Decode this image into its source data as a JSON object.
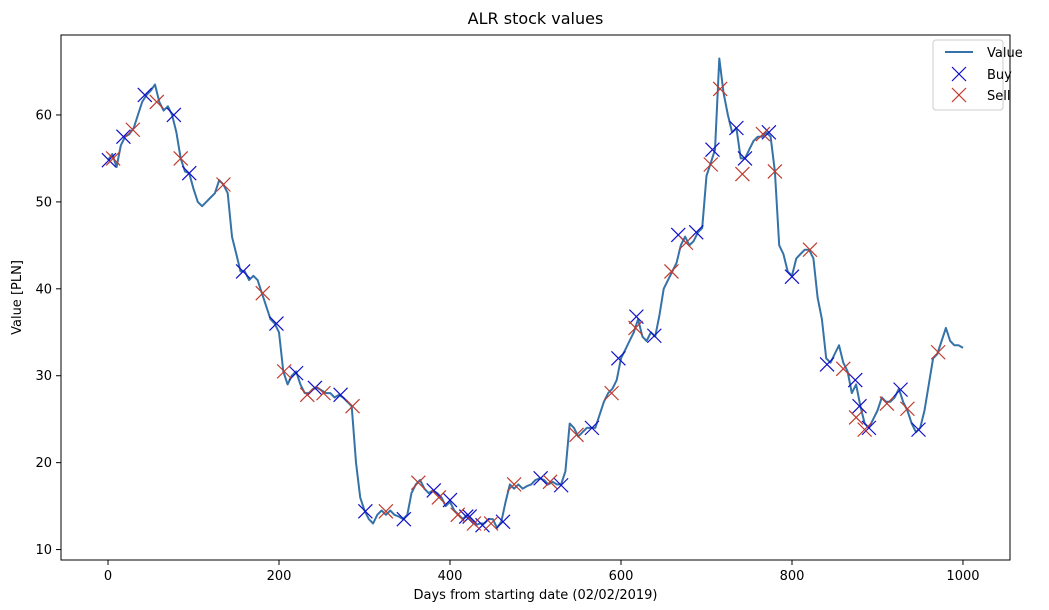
{
  "chart_data": {
    "type": "line",
    "title": "ALR stock values",
    "xlabel": "Days from starting date (02/02/2019)",
    "ylabel": "Value [PLN]",
    "xlim": [
      -55,
      1055
    ],
    "ylim": [
      8.8,
      69.2
    ],
    "xticks": [
      0,
      200,
      400,
      600,
      800,
      1000
    ],
    "yticks": [
      10,
      20,
      30,
      40,
      50,
      60
    ],
    "grid": false,
    "legend_position": "top-right",
    "colors": {
      "value": "#3572a8",
      "buy": "#1010c8",
      "sell": "#c0392b"
    },
    "series": [
      {
        "name": "Value",
        "kind": "line",
        "points": [
          [
            0,
            54.8
          ],
          [
            5,
            55.5
          ],
          [
            10,
            54.0
          ],
          [
            15,
            56.5
          ],
          [
            20,
            57.5
          ],
          [
            25,
            57.8
          ],
          [
            30,
            58.5
          ],
          [
            35,
            60.0
          ],
          [
            40,
            61.5
          ],
          [
            45,
            62.3
          ],
          [
            50,
            62.8
          ],
          [
            55,
            63.5
          ],
          [
            60,
            61.5
          ],
          [
            65,
            60.5
          ],
          [
            70,
            61.0
          ],
          [
            75,
            60.0
          ],
          [
            80,
            58.0
          ],
          [
            85,
            55.0
          ],
          [
            90,
            53.5
          ],
          [
            95,
            53.3
          ],
          [
            100,
            51.5
          ],
          [
            105,
            50.0
          ],
          [
            110,
            49.5
          ],
          [
            115,
            50.0
          ],
          [
            120,
            50.5
          ],
          [
            125,
            51.0
          ],
          [
            130,
            52.5
          ],
          [
            135,
            52.0
          ],
          [
            140,
            51.0
          ],
          [
            145,
            46.0
          ],
          [
            150,
            44.0
          ],
          [
            155,
            42.0
          ],
          [
            160,
            42.0
          ],
          [
            165,
            41.0
          ],
          [
            170,
            41.5
          ],
          [
            175,
            41.0
          ],
          [
            180,
            39.5
          ],
          [
            185,
            38.0
          ],
          [
            190,
            36.5
          ],
          [
            195,
            36.0
          ],
          [
            200,
            35.0
          ],
          [
            205,
            30.5
          ],
          [
            210,
            29.0
          ],
          [
            215,
            30.0
          ],
          [
            220,
            30.5
          ],
          [
            225,
            29.0
          ],
          [
            230,
            28.0
          ],
          [
            235,
            28.0
          ],
          [
            240,
            28.5
          ],
          [
            245,
            28.6
          ],
          [
            250,
            28.3
          ],
          [
            255,
            28.0
          ],
          [
            260,
            28.0
          ],
          [
            265,
            27.5
          ],
          [
            270,
            27.8
          ],
          [
            275,
            27.5
          ],
          [
            280,
            27.0
          ],
          [
            285,
            26.5
          ],
          [
            290,
            20.0
          ],
          [
            295,
            16.0
          ],
          [
            300,
            14.5
          ],
          [
            305,
            13.5
          ],
          [
            310,
            13.0
          ],
          [
            315,
            14.0
          ],
          [
            320,
            14.5
          ],
          [
            325,
            14.0
          ],
          [
            330,
            14.5
          ],
          [
            335,
            14.0
          ],
          [
            340,
            13.8
          ],
          [
            345,
            13.5
          ],
          [
            350,
            14.0
          ],
          [
            355,
            16.5
          ],
          [
            360,
            17.5
          ],
          [
            365,
            18.0
          ],
          [
            370,
            17.0
          ],
          [
            375,
            16.5
          ],
          [
            380,
            16.8
          ],
          [
            385,
            16.5
          ],
          [
            390,
            16.0
          ],
          [
            395,
            15.0
          ],
          [
            400,
            15.5
          ],
          [
            405,
            14.5
          ],
          [
            410,
            14.0
          ],
          [
            415,
            13.5
          ],
          [
            420,
            14.0
          ],
          [
            425,
            13.5
          ],
          [
            430,
            12.8
          ],
          [
            435,
            13.0
          ],
          [
            440,
            13.0
          ],
          [
            445,
            13.5
          ],
          [
            450,
            13.5
          ],
          [
            455,
            12.5
          ],
          [
            460,
            13.2
          ],
          [
            465,
            15.5
          ],
          [
            470,
            17.5
          ],
          [
            475,
            17.0
          ],
          [
            480,
            17.5
          ],
          [
            485,
            17.0
          ],
          [
            490,
            17.3
          ],
          [
            495,
            17.5
          ],
          [
            500,
            18.0
          ],
          [
            505,
            18.2
          ],
          [
            510,
            18.0
          ],
          [
            515,
            17.5
          ],
          [
            520,
            17.8
          ],
          [
            525,
            17.5
          ],
          [
            530,
            17.5
          ],
          [
            535,
            19.0
          ],
          [
            540,
            24.5
          ],
          [
            545,
            24.0
          ],
          [
            550,
            23.0
          ],
          [
            555,
            23.5
          ],
          [
            560,
            24.0
          ],
          [
            565,
            24.0
          ],
          [
            570,
            24.0
          ],
          [
            575,
            25.5
          ],
          [
            580,
            27.0
          ],
          [
            585,
            28.0
          ],
          [
            590,
            28.5
          ],
          [
            595,
            29.5
          ],
          [
            600,
            32.0
          ],
          [
            605,
            33.0
          ],
          [
            610,
            34.0
          ],
          [
            615,
            35.0
          ],
          [
            620,
            36.5
          ],
          [
            625,
            34.5
          ],
          [
            630,
            34.0
          ],
          [
            635,
            35.0
          ],
          [
            640,
            34.5
          ],
          [
            645,
            37.0
          ],
          [
            650,
            40.0
          ],
          [
            655,
            41.0
          ],
          [
            660,
            42.0
          ],
          [
            665,
            43.0
          ],
          [
            670,
            45.0
          ],
          [
            675,
            46.0
          ],
          [
            680,
            45.0
          ],
          [
            685,
            45.5
          ],
          [
            690,
            46.5
          ],
          [
            695,
            47.0
          ],
          [
            700,
            53.0
          ],
          [
            705,
            54.5
          ],
          [
            710,
            56.0
          ],
          [
            715,
            66.5
          ],
          [
            720,
            62.5
          ],
          [
            725,
            60.0
          ],
          [
            730,
            58.0
          ],
          [
            735,
            58.5
          ],
          [
            740,
            55.0
          ],
          [
            745,
            55.0
          ],
          [
            750,
            56.0
          ],
          [
            755,
            57.0
          ],
          [
            760,
            57.5
          ],
          [
            765,
            57.5
          ],
          [
            770,
            58.0
          ],
          [
            775,
            57.5
          ],
          [
            780,
            53.5
          ],
          [
            785,
            45.0
          ],
          [
            790,
            44.0
          ],
          [
            795,
            42.0
          ],
          [
            800,
            41.5
          ],
          [
            805,
            43.5
          ],
          [
            810,
            44.0
          ],
          [
            815,
            44.5
          ],
          [
            820,
            44.5
          ],
          [
            825,
            43.5
          ],
          [
            830,
            39.0
          ],
          [
            835,
            36.5
          ],
          [
            840,
            32.0
          ],
          [
            845,
            31.5
          ],
          [
            850,
            32.5
          ],
          [
            855,
            33.5
          ],
          [
            860,
            31.5
          ],
          [
            865,
            30.5
          ],
          [
            870,
            28.0
          ],
          [
            875,
            29.0
          ],
          [
            880,
            26.5
          ],
          [
            885,
            24.5
          ],
          [
            890,
            24.0
          ],
          [
            895,
            25.0
          ],
          [
            900,
            26.0
          ],
          [
            905,
            27.5
          ],
          [
            910,
            27.0
          ],
          [
            915,
            27.0
          ],
          [
            920,
            27.5
          ],
          [
            925,
            28.5
          ],
          [
            930,
            27.0
          ],
          [
            935,
            26.0
          ],
          [
            940,
            24.5
          ],
          [
            945,
            23.5
          ],
          [
            950,
            24.0
          ],
          [
            955,
            26.0
          ],
          [
            960,
            29.0
          ],
          [
            965,
            32.0
          ],
          [
            970,
            32.5
          ],
          [
            975,
            34.0
          ],
          [
            980,
            35.5
          ],
          [
            985,
            34.0
          ],
          [
            990,
            33.5
          ],
          [
            995,
            33.5
          ],
          [
            1000,
            33.2
          ]
        ]
      },
      {
        "name": "Buy",
        "kind": "marker",
        "points": [
          [
            1,
            54.8
          ],
          [
            18,
            57.5
          ],
          [
            43,
            62.3
          ],
          [
            77,
            60.0
          ],
          [
            95,
            53.3
          ],
          [
            158,
            42.0
          ],
          [
            197,
            36.0
          ],
          [
            220,
            30.3
          ],
          [
            242,
            28.6
          ],
          [
            272,
            27.8
          ],
          [
            301,
            14.4
          ],
          [
            346,
            13.5
          ],
          [
            381,
            16.8
          ],
          [
            400,
            15.7
          ],
          [
            419,
            13.8
          ],
          [
            423,
            13.8
          ],
          [
            438,
            12.8
          ],
          [
            462,
            13.2
          ],
          [
            506,
            18.2
          ],
          [
            530,
            17.4
          ],
          [
            566,
            24.0
          ],
          [
            597,
            32.0
          ],
          [
            618,
            36.8
          ],
          [
            639,
            34.6
          ],
          [
            667,
            46.2
          ],
          [
            688,
            46.5
          ],
          [
            707,
            56.0
          ],
          [
            735,
            58.5
          ],
          [
            745,
            55.0
          ],
          [
            773,
            58.0
          ],
          [
            800,
            41.4
          ],
          [
            841,
            31.3
          ],
          [
            874,
            29.5
          ],
          [
            879,
            26.5
          ],
          [
            890,
            24.0
          ],
          [
            927,
            28.4
          ],
          [
            948,
            23.8
          ]
        ]
      },
      {
        "name": "Sell",
        "kind": "marker",
        "points": [
          [
            6,
            55.0
          ],
          [
            29,
            58.3
          ],
          [
            57,
            61.5
          ],
          [
            85,
            55.0
          ],
          [
            135,
            52.0
          ],
          [
            181,
            39.5
          ],
          [
            206,
            30.5
          ],
          [
            233,
            27.8
          ],
          [
            252,
            28.0
          ],
          [
            286,
            26.5
          ],
          [
            325,
            14.4
          ],
          [
            363,
            17.7
          ],
          [
            387,
            16.0
          ],
          [
            409,
            14.0
          ],
          [
            428,
            13.0
          ],
          [
            448,
            13.0
          ],
          [
            475,
            17.5
          ],
          [
            517,
            17.8
          ],
          [
            548,
            23.2
          ],
          [
            589,
            28.0
          ],
          [
            617,
            35.5
          ],
          [
            659,
            42.0
          ],
          [
            676,
            45.3
          ],
          [
            705,
            54.3
          ],
          [
            716,
            63.0
          ],
          [
            742,
            53.2
          ],
          [
            766,
            57.8
          ],
          [
            780,
            53.5
          ],
          [
            821,
            44.5
          ],
          [
            860,
            30.8
          ],
          [
            875,
            25.2
          ],
          [
            885,
            23.8
          ],
          [
            911,
            26.8
          ],
          [
            935,
            26.2
          ],
          [
            971,
            32.7
          ]
        ]
      }
    ]
  }
}
